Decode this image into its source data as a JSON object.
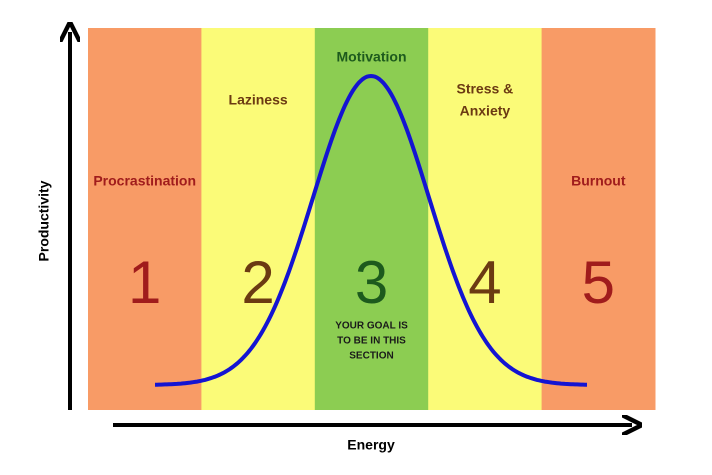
{
  "axes": {
    "y_label": "Productivity",
    "x_label": "Energy"
  },
  "zones": [
    {
      "label_lines": [
        "Procrastination"
      ],
      "number": "1",
      "color": "#f89b66",
      "text_color": "#a01c1c"
    },
    {
      "label_lines": [
        "Laziness"
      ],
      "number": "2",
      "color": "#fbfb78",
      "text_color": "#6b3a12"
    },
    {
      "label_lines": [
        "Motivation"
      ],
      "number": "3",
      "color": "#8ccd52",
      "text_color": "#1d5a1d",
      "note_lines": [
        "YOUR GOAL IS",
        "TO BE IN THIS",
        "SECTION"
      ]
    },
    {
      "label_lines": [
        "Stress &",
        "Anxiety"
      ],
      "number": "4",
      "color": "#fbfb78",
      "text_color": "#6b3a12"
    },
    {
      "label_lines": [
        "Burnout"
      ],
      "number": "5",
      "color": "#f89b66",
      "text_color": "#a01c1c"
    }
  ]
}
